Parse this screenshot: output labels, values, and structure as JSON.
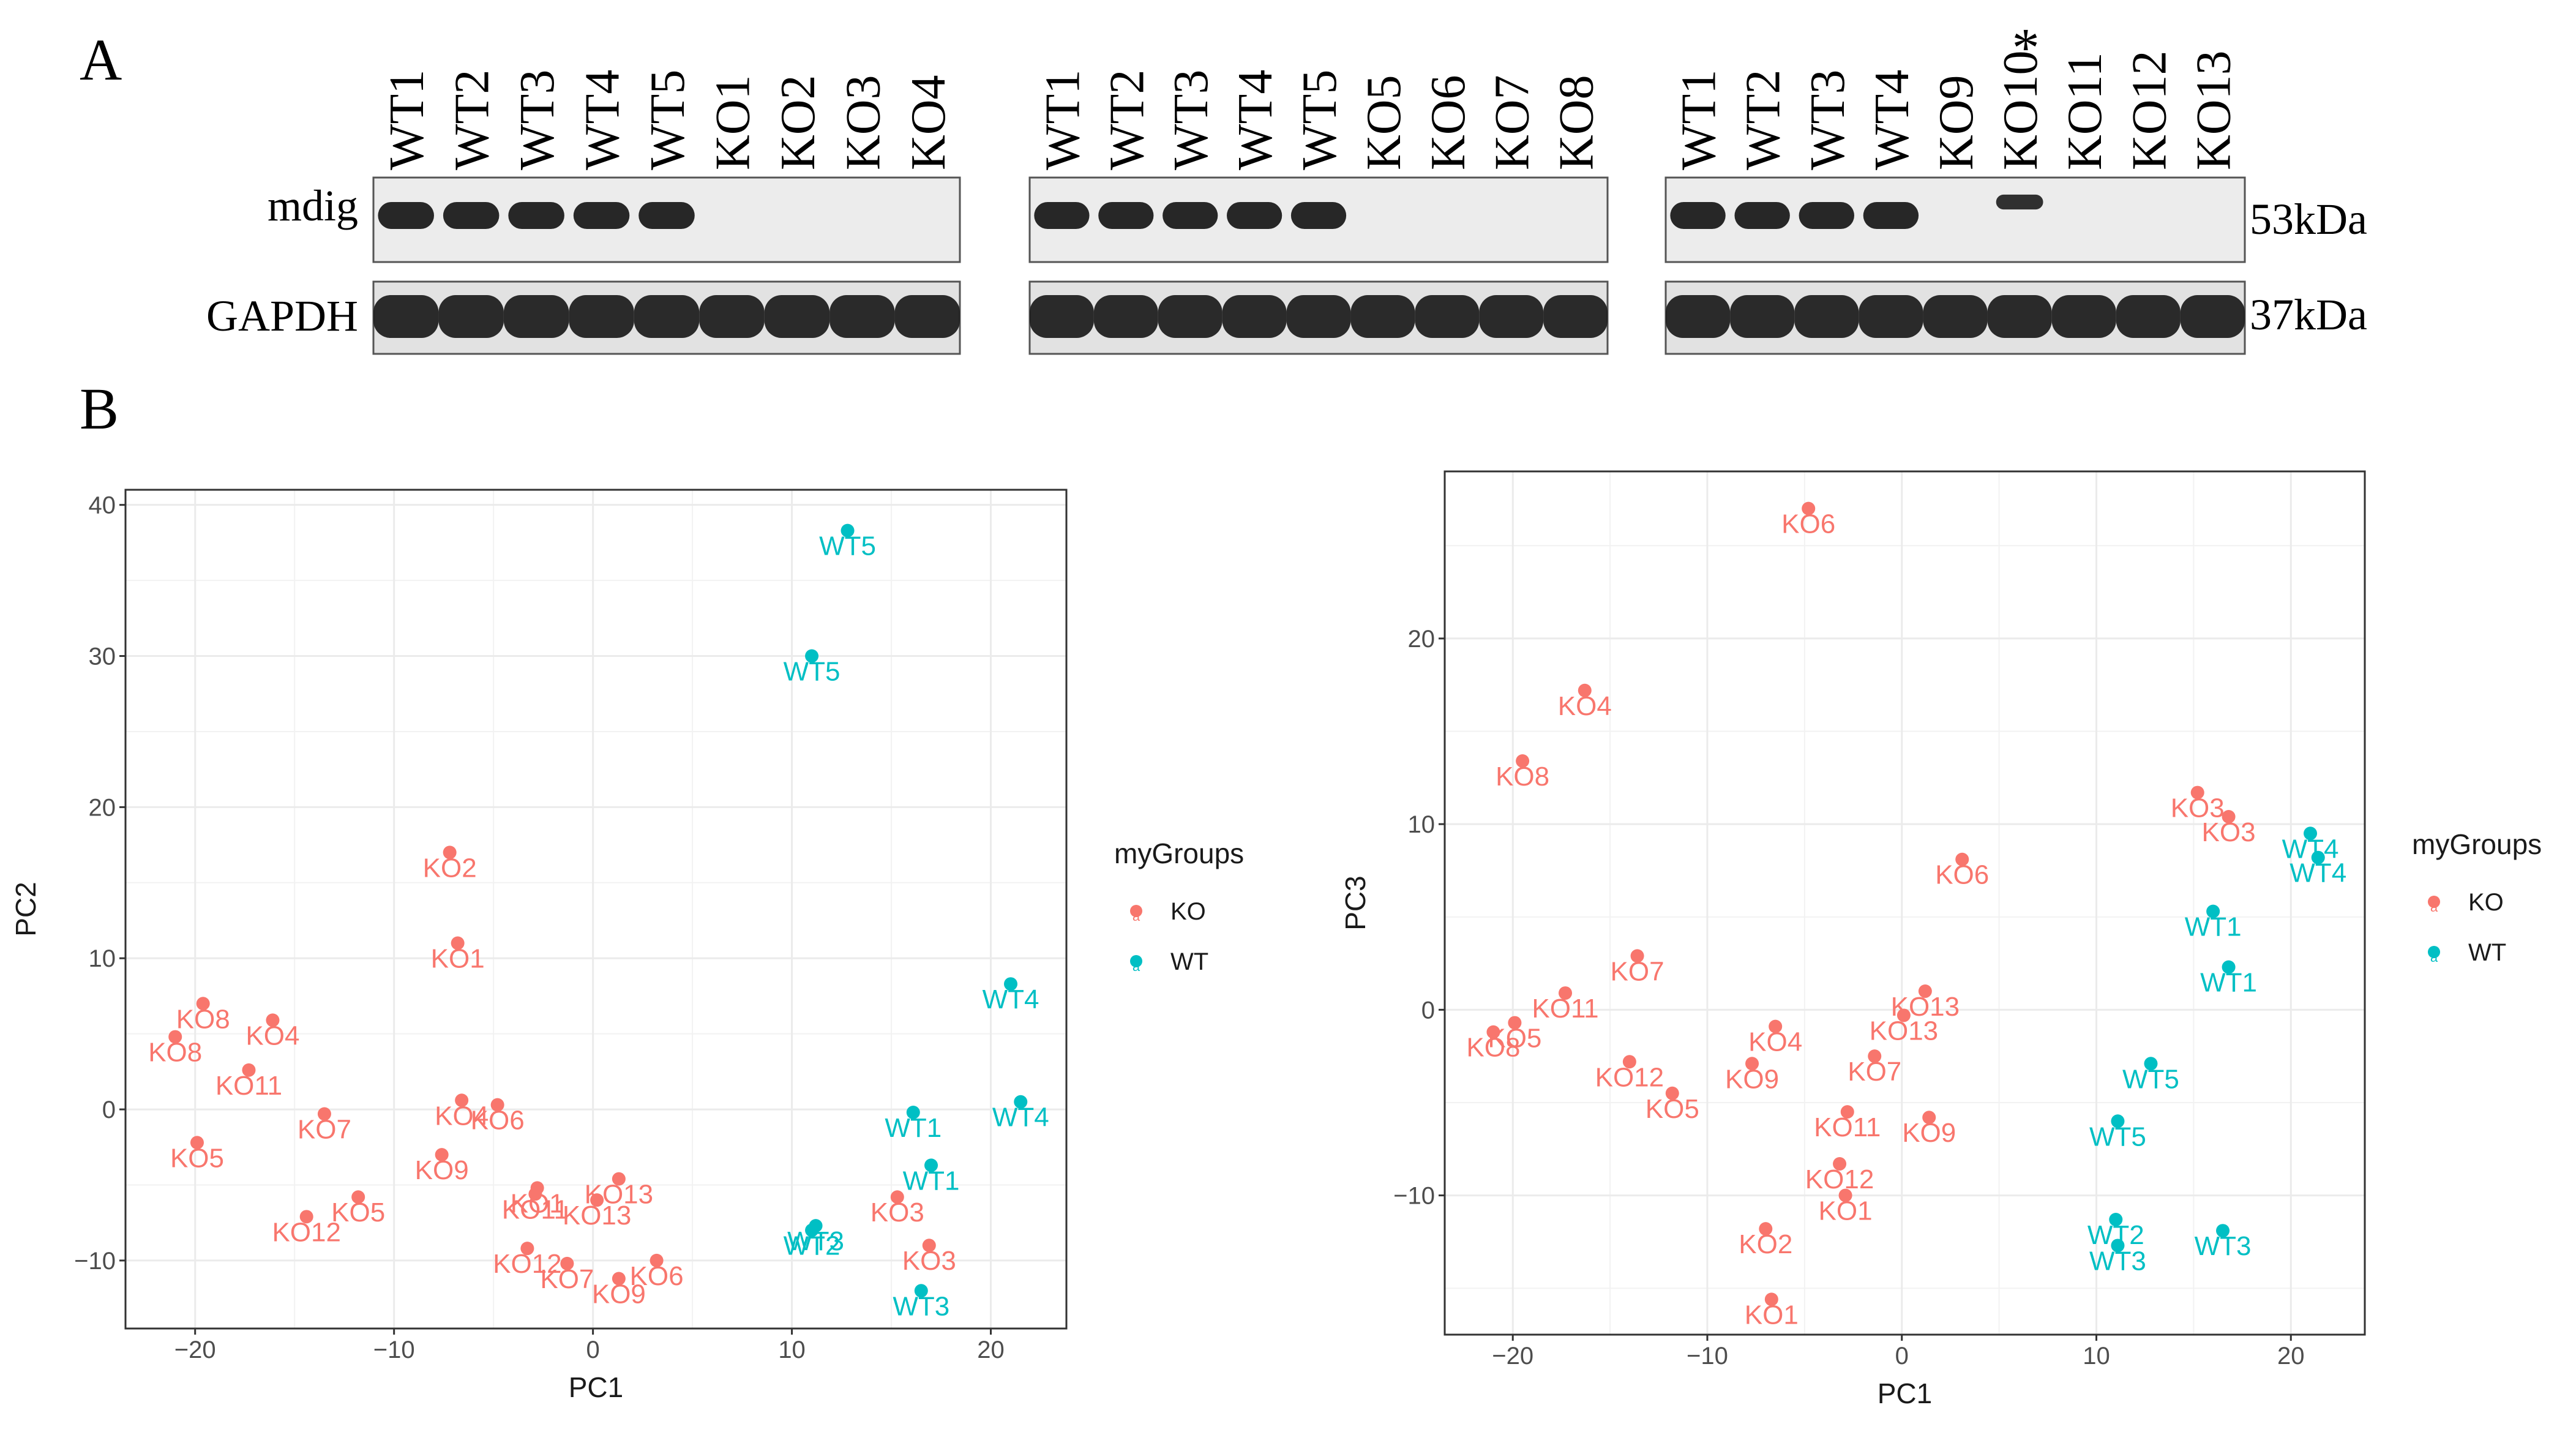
{
  "panel_a": {
    "letter": "A",
    "proteins": [
      "mdig",
      "GAPDH"
    ],
    "weights": [
      "53kDa",
      "37kDa"
    ],
    "asterisk": "*",
    "blots": [
      {
        "lanes": [
          "WT1",
          "WT2",
          "WT3",
          "WT4",
          "WT5",
          "KO1",
          "KO2",
          "KO3",
          "KO4"
        ],
        "mdig_intensity": [
          1,
          1,
          1,
          1,
          1,
          0,
          0,
          0,
          0
        ]
      },
      {
        "lanes": [
          "WT1",
          "WT2",
          "WT3",
          "WT4",
          "WT5",
          "KO5",
          "KO6",
          "KO7",
          "KO8"
        ],
        "mdig_intensity": [
          1,
          1,
          1,
          1,
          1,
          0,
          0,
          0,
          0
        ]
      },
      {
        "lanes": [
          "WT1",
          "WT2",
          "WT3",
          "WT4",
          "KO9",
          "KO10",
          "KO11",
          "KO12",
          "KO13"
        ],
        "mdig_intensity": [
          1,
          1,
          1,
          1,
          0,
          0.55,
          0,
          0,
          0
        ],
        "asterisk_lane": 5
      }
    ]
  },
  "panel_b": {
    "letter": "B"
  },
  "colors": {
    "KO": "#F8766D",
    "WT": "#00BFC4"
  },
  "chart_data": [
    {
      "type": "scatter",
      "xlabel": "PC1",
      "ylabel": "PC2",
      "xlim": [
        -23.5,
        23.8
      ],
      "ylim": [
        -14.5,
        41
      ],
      "xticks": [
        -20,
        -10,
        0,
        10,
        20
      ],
      "yticks": [
        -10,
        0,
        10,
        20,
        30,
        40
      ],
      "grid": true,
      "legend": {
        "title": "myGroups",
        "entries": [
          "KO",
          "WT"
        ],
        "position": "right"
      },
      "points": [
        {
          "x": 12.8,
          "y": 38.3,
          "g": "WT",
          "label": "WT5"
        },
        {
          "x": 11,
          "y": 30,
          "g": "WT",
          "label": "WT5"
        },
        {
          "x": -7.2,
          "y": 17,
          "g": "KO",
          "label": "KO2"
        },
        {
          "x": -6.8,
          "y": 11,
          "g": "KO",
          "label": "KO1"
        },
        {
          "x": -19.6,
          "y": 7,
          "g": "KO",
          "label": "KO8"
        },
        {
          "x": -16.1,
          "y": 5.9,
          "g": "KO",
          "label": "KO4"
        },
        {
          "x": -21,
          "y": 4.8,
          "g": "KO",
          "label": "KO8"
        },
        {
          "x": -17.3,
          "y": 2.6,
          "g": "KO",
          "label": "KO11"
        },
        {
          "x": -13.5,
          "y": -0.3,
          "g": "KO",
          "label": "KO7"
        },
        {
          "x": -19.9,
          "y": -2.2,
          "g": "KO",
          "label": "KO5"
        },
        {
          "x": -6.6,
          "y": 0.6,
          "g": "KO",
          "label": "KO4"
        },
        {
          "x": -4.8,
          "y": 0.3,
          "g": "KO",
          "label": "KO6"
        },
        {
          "x": -7.6,
          "y": -3,
          "g": "KO",
          "label": "KO9"
        },
        {
          "x": -11.8,
          "y": -5.8,
          "g": "KO",
          "label": "KO5"
        },
        {
          "x": -14.4,
          "y": -7.1,
          "g": "KO",
          "label": "KO12"
        },
        {
          "x": -2.9,
          "y": -5.6,
          "g": "KO",
          "label": "KO11"
        },
        {
          "x": -2.8,
          "y": -5.2,
          "g": "KO",
          "label": "KO1"
        },
        {
          "x": 1.3,
          "y": -4.6,
          "g": "KO",
          "label": "KO13"
        },
        {
          "x": 0.2,
          "y": -6,
          "g": "KO",
          "label": "KO13"
        },
        {
          "x": -3.3,
          "y": -9.2,
          "g": "KO",
          "label": "KO12"
        },
        {
          "x": -1.3,
          "y": -10.2,
          "g": "KO",
          "label": "KO7"
        },
        {
          "x": 1.3,
          "y": -11.2,
          "g": "KO",
          "label": "KO9"
        },
        {
          "x": 3.2,
          "y": -10,
          "g": "KO",
          "label": "KO6"
        },
        {
          "x": 15.3,
          "y": -5.8,
          "g": "KO",
          "label": "KO3"
        },
        {
          "x": 16.9,
          "y": -9,
          "g": "KO",
          "label": "KO3"
        },
        {
          "x": 16.1,
          "y": -0.2,
          "g": "WT",
          "label": "WT1"
        },
        {
          "x": 17,
          "y": -3.7,
          "g": "WT",
          "label": "WT1"
        },
        {
          "x": 21,
          "y": 8.3,
          "g": "WT",
          "label": "WT4"
        },
        {
          "x": 21.5,
          "y": 0.5,
          "g": "WT",
          "label": "WT4"
        },
        {
          "x": 11.2,
          "y": -7.7,
          "g": "WT",
          "label": "WT3"
        },
        {
          "x": 11,
          "y": -8,
          "g": "WT",
          "label": "WT2"
        },
        {
          "x": 16.5,
          "y": -12,
          "g": "WT",
          "label": "WT3"
        }
      ]
    },
    {
      "type": "scatter",
      "xlabel": "PC1",
      "ylabel": "PC3",
      "xlim": [
        -23.5,
        23.8
      ],
      "ylim": [
        -17.5,
        29
      ],
      "xticks": [
        -20,
        -10,
        0,
        10,
        20
      ],
      "yticks": [
        -10,
        0,
        10,
        20
      ],
      "grid": true,
      "legend": {
        "title": "myGroups",
        "entries": [
          "KO",
          "WT"
        ],
        "position": "right"
      },
      "points": [
        {
          "x": -4.8,
          "y": 27,
          "g": "KO",
          "label": "KO6"
        },
        {
          "x": -16.3,
          "y": 17.2,
          "g": "KO",
          "label": "KO4"
        },
        {
          "x": -19.5,
          "y": 13.4,
          "g": "KO",
          "label": "KO8"
        },
        {
          "x": 15.2,
          "y": 11.7,
          "g": "KO",
          "label": "KO3"
        },
        {
          "x": 16.8,
          "y": 10.4,
          "g": "KO",
          "label": "KO3"
        },
        {
          "x": 3.1,
          "y": 8.1,
          "g": "KO",
          "label": "KO6"
        },
        {
          "x": -13.6,
          "y": 2.9,
          "g": "KO",
          "label": "KO7"
        },
        {
          "x": -17.3,
          "y": 0.9,
          "g": "KO",
          "label": "KO11"
        },
        {
          "x": 1.2,
          "y": 1,
          "g": "KO",
          "label": "KO13"
        },
        {
          "x": 0.1,
          "y": -0.3,
          "g": "KO",
          "label": "KO13"
        },
        {
          "x": -6.5,
          "y": -0.9,
          "g": "KO",
          "label": "KO4"
        },
        {
          "x": -19.9,
          "y": -0.7,
          "g": "KO",
          "label": "KO5"
        },
        {
          "x": -21,
          "y": -1.2,
          "g": "KO",
          "label": "KO8"
        },
        {
          "x": -14,
          "y": -2.8,
          "g": "KO",
          "label": "KO12"
        },
        {
          "x": -7.7,
          "y": -2.9,
          "g": "KO",
          "label": "KO9"
        },
        {
          "x": -1.4,
          "y": -2.5,
          "g": "KO",
          "label": "KO7"
        },
        {
          "x": -11.8,
          "y": -4.5,
          "g": "KO",
          "label": "KO5"
        },
        {
          "x": -2.8,
          "y": -5.5,
          "g": "KO",
          "label": "KO11"
        },
        {
          "x": 1.4,
          "y": -5.8,
          "g": "KO",
          "label": "KO9"
        },
        {
          "x": -3.2,
          "y": -8.3,
          "g": "KO",
          "label": "KO12"
        },
        {
          "x": -2.9,
          "y": -10,
          "g": "KO",
          "label": "KO1"
        },
        {
          "x": -7,
          "y": -11.8,
          "g": "KO",
          "label": "KO2"
        },
        {
          "x": -6.7,
          "y": -15.6,
          "g": "KO",
          "label": "KO1"
        },
        {
          "x": 21,
          "y": 9.5,
          "g": "WT",
          "label": "WT4"
        },
        {
          "x": 21.4,
          "y": 8.2,
          "g": "WT",
          "label": "WT4"
        },
        {
          "x": 16,
          "y": 5.3,
          "g": "WT",
          "label": "WT1"
        },
        {
          "x": 16.8,
          "y": 2.3,
          "g": "WT",
          "label": "WT1"
        },
        {
          "x": 12.8,
          "y": -2.9,
          "g": "WT",
          "label": "WT5"
        },
        {
          "x": 11.1,
          "y": -6,
          "g": "WT",
          "label": "WT5"
        },
        {
          "x": 11,
          "y": -11.3,
          "g": "WT",
          "label": "WT2"
        },
        {
          "x": 11.1,
          "y": -12.7,
          "g": "WT",
          "label": "WT3"
        },
        {
          "x": 16.5,
          "y": -11.9,
          "g": "WT",
          "label": "WT3"
        }
      ]
    }
  ]
}
